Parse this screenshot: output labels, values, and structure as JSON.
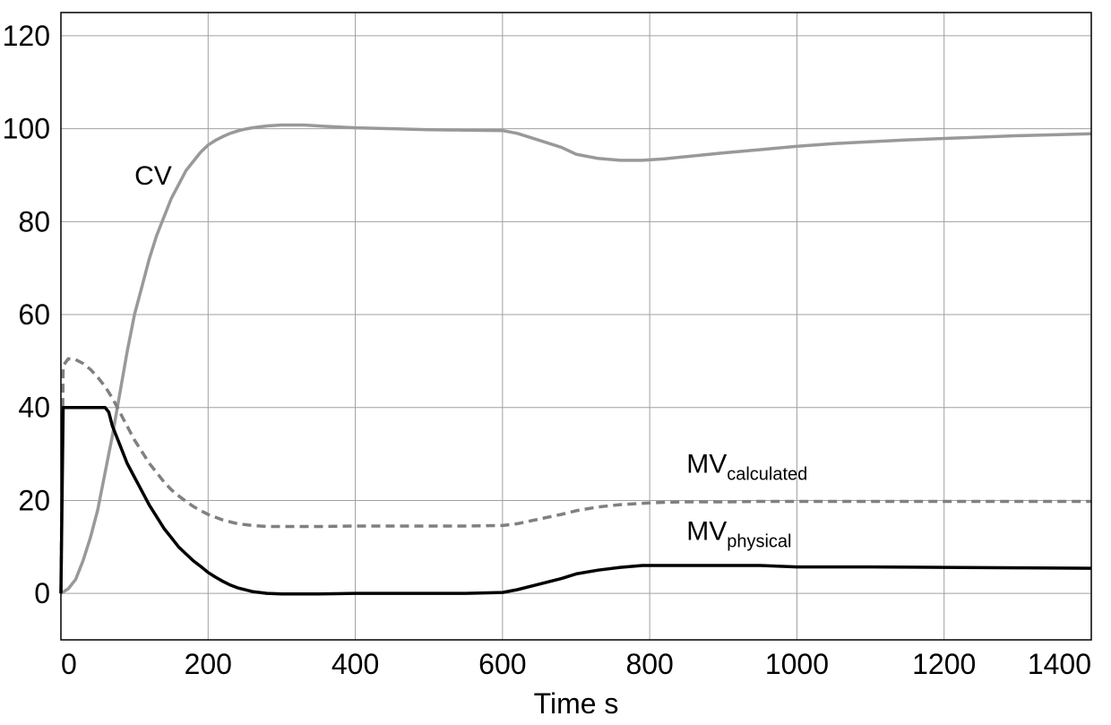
{
  "chart_data": {
    "type": "line",
    "title": "",
    "xlabel": "Time s",
    "ylabel": "",
    "xlim": [
      0,
      1400
    ],
    "ylim": [
      -10,
      125
    ],
    "xticks": [
      0,
      200,
      400,
      600,
      800,
      1000,
      1200,
      1400
    ],
    "yticks": [
      0,
      20,
      40,
      60,
      80,
      100,
      120
    ],
    "xtick_labels": [
      "0",
      "200",
      "400",
      "600",
      "800",
      "1000",
      "1200",
      "1400"
    ],
    "ytick_labels": [
      "0",
      "20",
      "40",
      "60",
      "80",
      "100",
      "120"
    ],
    "grid": true,
    "series": [
      {
        "name": "CV",
        "color": "#999999",
        "style": "solid",
        "x": [
          0,
          10,
          20,
          30,
          40,
          50,
          60,
          70,
          80,
          90,
          100,
          110,
          120,
          130,
          140,
          150,
          160,
          170,
          180,
          190,
          200,
          210,
          220,
          230,
          240,
          250,
          260,
          280,
          300,
          330,
          360,
          400,
          450,
          500,
          550,
          600,
          620,
          650,
          680,
          700,
          730,
          760,
          790,
          820,
          850,
          900,
          950,
          1000,
          1050,
          1100,
          1150,
          1200,
          1250,
          1300,
          1350,
          1400
        ],
        "y": [
          0,
          1,
          3,
          7,
          12,
          18,
          26,
          34,
          43,
          52,
          60,
          66,
          72,
          77,
          81,
          85,
          88,
          91,
          93,
          95,
          96.5,
          97.5,
          98.3,
          99,
          99.5,
          99.9,
          100.2,
          100.6,
          100.8,
          100.8,
          100.5,
          100.2,
          100,
          99.8,
          99.7,
          99.6,
          99,
          97.5,
          96,
          94.5,
          93.6,
          93.2,
          93.2,
          93.5,
          94,
          94.8,
          95.5,
          96.2,
          96.8,
          97.2,
          97.6,
          97.9,
          98.2,
          98.5,
          98.7,
          98.9
        ]
      },
      {
        "name": "MV_calculated",
        "color": "#808080",
        "style": "dashed",
        "x": [
          0,
          3,
          10,
          20,
          30,
          40,
          50,
          60,
          70,
          80,
          90,
          100,
          110,
          120,
          130,
          140,
          150,
          160,
          170,
          180,
          190,
          200,
          220,
          240,
          260,
          280,
          300,
          350,
          400,
          450,
          500,
          550,
          600,
          620,
          650,
          680,
          700,
          730,
          760,
          790,
          820,
          850,
          900,
          950,
          1000,
          1100,
          1200,
          1300,
          1400
        ],
        "y": [
          0,
          49,
          50.5,
          50.3,
          49.5,
          48.2,
          46.5,
          44.5,
          42,
          39,
          36,
          33,
          30.5,
          28,
          26,
          24,
          22.3,
          21,
          19.8,
          18.7,
          17.8,
          17,
          15.8,
          15,
          14.6,
          14.4,
          14.4,
          14.4,
          14.5,
          14.5,
          14.5,
          14.5,
          14.6,
          15,
          16,
          17,
          17.8,
          18.6,
          19.1,
          19.4,
          19.6,
          19.7,
          19.7,
          19.8,
          19.8,
          19.8,
          19.8,
          19.8,
          19.8
        ]
      },
      {
        "name": "MV_physical",
        "color": "#000000",
        "style": "solid",
        "x": [
          0,
          3,
          10,
          20,
          30,
          40,
          50,
          60,
          65,
          70,
          80,
          90,
          100,
          110,
          120,
          130,
          140,
          150,
          160,
          170,
          180,
          190,
          200,
          210,
          220,
          230,
          240,
          260,
          280,
          300,
          350,
          400,
          450,
          500,
          550,
          600,
          620,
          650,
          680,
          700,
          730,
          760,
          790,
          820,
          850,
          900,
          950,
          1000,
          1100,
          1200,
          1300,
          1400
        ],
        "y": [
          0,
          40,
          40,
          40,
          40,
          40,
          40,
          40,
          39,
          36,
          32,
          28,
          25,
          22,
          19,
          16.5,
          14,
          12,
          10,
          8.5,
          7,
          5.8,
          4.5,
          3.5,
          2.6,
          1.8,
          1.2,
          0.4,
          0,
          -0.1,
          -0.1,
          0,
          0,
          0,
          0,
          0.2,
          0.8,
          2,
          3.2,
          4.2,
          5,
          5.6,
          6,
          6,
          6,
          6,
          6,
          5.7,
          5.7,
          5.6,
          5.5,
          5.4
        ]
      }
    ],
    "annotations": [
      {
        "name": "cv-label",
        "text": "CV",
        "x": 100,
        "y": 88
      },
      {
        "name": "mv-calculated-label",
        "text": "MV",
        "sub": "calculated",
        "x": 850,
        "y": 26
      },
      {
        "name": "mv-physical-label",
        "text": "MV",
        "sub": "physical",
        "x": 850,
        "y": 11.5
      }
    ]
  }
}
